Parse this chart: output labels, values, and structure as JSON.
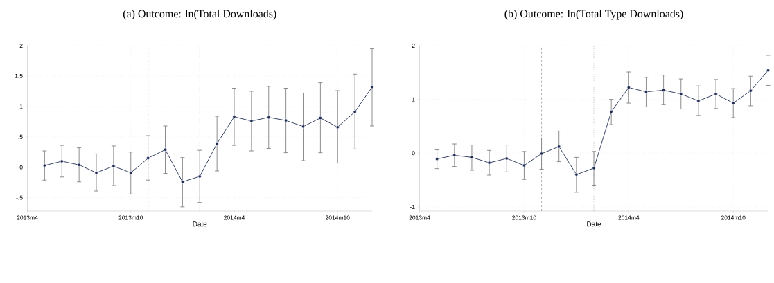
{
  "chart_data": [
    {
      "type": "line",
      "title": "(a) Outcome: ln(Total Downloads)",
      "xlabel": "Date",
      "x": [
        "2013-05",
        "2013-06",
        "2013-07",
        "2013-08",
        "2013-09",
        "2013-10",
        "2013-11",
        "2013-12",
        "2014-01",
        "2014-02",
        "2014-03",
        "2014-04",
        "2014-05",
        "2014-06",
        "2014-07",
        "2014-08",
        "2014-09",
        "2014-10",
        "2014-11",
        "2014-12"
      ],
      "values": [
        0.03,
        0.1,
        0.04,
        -0.09,
        0.02,
        -0.09,
        0.15,
        0.29,
        -0.24,
        -0.15,
        0.39,
        0.83,
        0.76,
        0.82,
        0.77,
        0.67,
        0.81,
        0.66,
        0.91,
        1.32
      ],
      "errors": [
        [
          -0.21,
          0.27
        ],
        [
          -0.16,
          0.36
        ],
        [
          -0.24,
          0.32
        ],
        [
          -0.39,
          0.22
        ],
        [
          -0.3,
          0.35
        ],
        [
          -0.44,
          0.25
        ],
        [
          -0.21,
          0.52
        ],
        [
          -0.1,
          0.68
        ],
        [
          -0.65,
          0.16
        ],
        [
          -0.58,
          0.28
        ],
        [
          -0.06,
          0.84
        ],
        [
          0.36,
          1.3
        ],
        [
          0.27,
          1.25
        ],
        [
          0.31,
          1.33
        ],
        [
          0.24,
          1.3
        ],
        [
          0.11,
          1.22
        ],
        [
          0.24,
          1.39
        ],
        [
          0.07,
          1.26
        ],
        [
          0.3,
          1.53
        ],
        [
          0.68,
          1.95
        ]
      ],
      "color": "#1f2d50",
      "marker": "circle",
      "line_style": "solid",
      "grid": true,
      "xlim": [
        "2013-04",
        "2014-12"
      ],
      "xticks": [
        {
          "value": "2013-04",
          "label": "2013m4"
        },
        {
          "value": "2013-10",
          "label": "2013m10"
        },
        {
          "value": "2014-04",
          "label": "2014m4"
        },
        {
          "value": "2014-10",
          "label": "2014m10"
        }
      ],
      "ylim": [
        -0.72,
        2
      ],
      "yticks": [
        {
          "value": -0.5,
          "label": "-.5"
        },
        0,
        {
          "value": 0.5,
          "label": ".5"
        },
        1,
        1.5,
        2
      ],
      "ref_lines": [
        {
          "axis": "x",
          "value": "2013-11",
          "line_style": "dashed",
          "color": "#8c8c8c"
        },
        {
          "axis": "x",
          "value": "2014-02",
          "line_style": "dotted",
          "color": "#8c8c8c"
        }
      ]
    },
    {
      "type": "line",
      "title": "(b) Outcome: ln(Total Type Downloads)",
      "xlabel": "Date",
      "x": [
        "2013-05",
        "2013-06",
        "2013-07",
        "2013-08",
        "2013-09",
        "2013-10",
        "2013-11",
        "2013-12",
        "2014-01",
        "2014-02",
        "2014-03",
        "2014-04",
        "2014-05",
        "2014-06",
        "2014-07",
        "2014-08",
        "2014-09",
        "2014-10",
        "2014-11",
        "2014-12"
      ],
      "values": [
        -0.11,
        -0.04,
        -0.08,
        -0.18,
        -0.1,
        -0.23,
        -0.01,
        0.12,
        -0.4,
        -0.28,
        0.77,
        1.22,
        1.14,
        1.17,
        1.1,
        0.97,
        1.1,
        0.93,
        1.16,
        1.54
      ],
      "errors": [
        [
          -0.29,
          0.06
        ],
        [
          -0.25,
          0.17
        ],
        [
          -0.32,
          0.15
        ],
        [
          -0.41,
          0.05
        ],
        [
          -0.35,
          0.15
        ],
        [
          -0.49,
          0.03
        ],
        [
          -0.3,
          0.28
        ],
        [
          -0.16,
          0.41
        ],
        [
          -0.73,
          -0.08
        ],
        [
          -0.61,
          0.03
        ],
        [
          0.53,
          1.0
        ],
        [
          0.93,
          1.51
        ],
        [
          0.86,
          1.41
        ],
        [
          0.9,
          1.45
        ],
        [
          0.82,
          1.38
        ],
        [
          0.7,
          1.25
        ],
        [
          0.83,
          1.37
        ],
        [
          0.66,
          1.2
        ],
        [
          0.88,
          1.43
        ],
        [
          1.26,
          1.82
        ]
      ],
      "color": "#1f2d50",
      "marker": "circle",
      "line_style": "solid",
      "grid": true,
      "xlim": [
        "2013-04",
        "2014-12"
      ],
      "xticks": [
        {
          "value": "2013-04",
          "label": "2013m4"
        },
        {
          "value": "2013-10",
          "label": "2013m10"
        },
        {
          "value": "2014-04",
          "label": "2014m4"
        },
        {
          "value": "2014-10",
          "label": "2014m10"
        }
      ],
      "ylim": [
        -1.08,
        2
      ],
      "yticks": [
        -1,
        0,
        1,
        2
      ],
      "ref_lines": [
        {
          "axis": "x",
          "value": "2013-11",
          "line_style": "dashed",
          "color": "#8c8c8c"
        },
        {
          "axis": "x",
          "value": "2014-02",
          "line_style": "dotted",
          "color": "#8c8c8c"
        }
      ]
    }
  ]
}
